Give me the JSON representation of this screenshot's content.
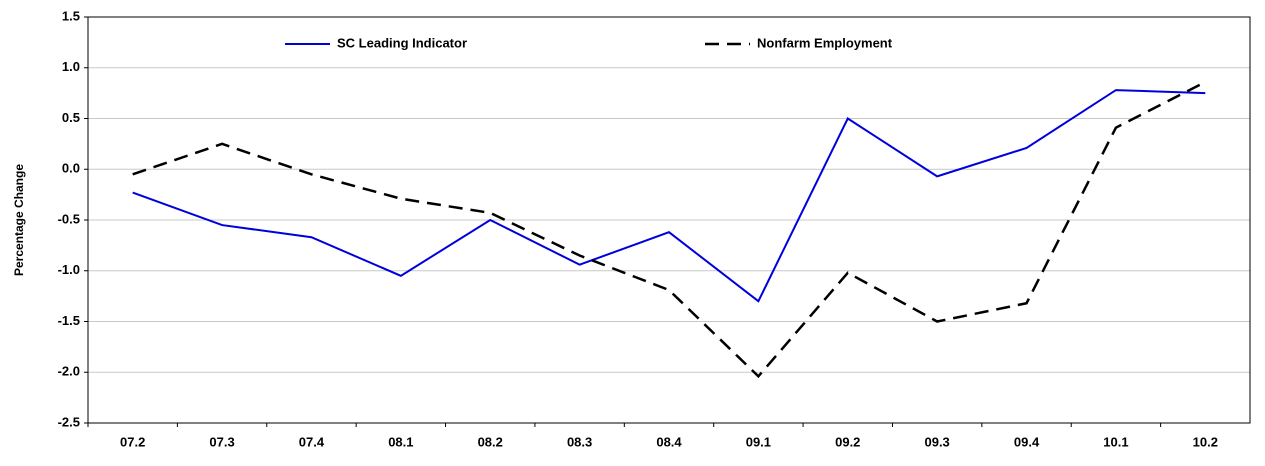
{
  "chart_data": {
    "type": "line",
    "ylabel": "Percentage Change",
    "categories": [
      "07.2",
      "07.3",
      "07.4",
      "08.1",
      "08.2",
      "08.3",
      "08.4",
      "09.1",
      "09.2",
      "09.3",
      "09.4",
      "10.1",
      "10.2"
    ],
    "series": [
      {
        "name": "SC Leading Indicator",
        "color": "#0000dd",
        "dash": false,
        "values": [
          -0.23,
          -0.55,
          -0.67,
          -1.05,
          -0.5,
          -0.94,
          -0.62,
          -1.3,
          0.5,
          -0.07,
          0.21,
          0.78,
          0.75
        ]
      },
      {
        "name": "Nonfarm Employment",
        "color": "#000000",
        "dash": true,
        "values": [
          -0.05,
          0.25,
          -0.05,
          -0.29,
          -0.43,
          -0.85,
          -1.19,
          -2.04,
          -1.02,
          -1.5,
          -1.32,
          0.41,
          0.86
        ]
      }
    ],
    "ylim": [
      -2.5,
      1.5
    ],
    "yticks": [
      -2.5,
      {
        "value": -2,
        "label": "-2.0"
      },
      -1.5,
      {
        "value": -1,
        "label": "-1.0"
      },
      -0.5,
      {
        "value": 0,
        "label": "0.0"
      },
      0.5,
      {
        "value": 1,
        "label": "1.0"
      },
      1.5
    ],
    "grid": true
  }
}
